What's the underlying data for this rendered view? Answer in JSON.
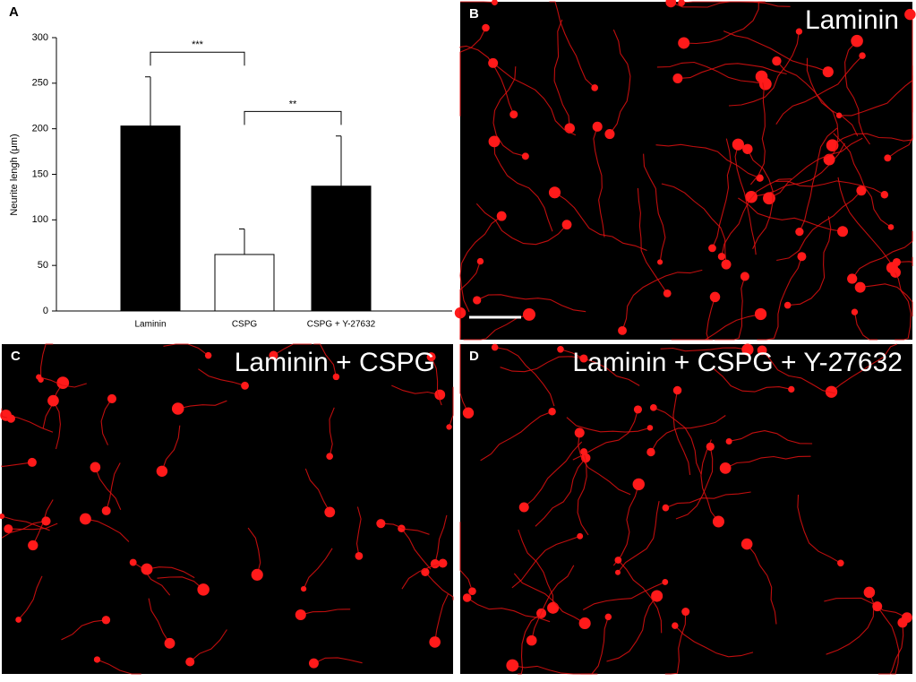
{
  "chart_data": {
    "type": "bar",
    "panel_letter": "A",
    "y_label": "Neurite lengh (μm)",
    "categories": [
      "Laminin",
      "CSPG",
      "CSPG + Y-27632"
    ],
    "values": [
      203,
      62,
      137
    ],
    "errors": [
      54,
      28,
      55
    ],
    "colors": [
      "#000000",
      "#ffffff",
      "#000000"
    ],
    "ylim": [
      0,
      300
    ],
    "yticks": [
      0,
      50,
      100,
      150,
      200,
      250,
      300
    ],
    "annotations": [
      {
        "text": "***",
        "from": 0,
        "to": 1
      },
      {
        "text": "**",
        "from": 1,
        "to": 2
      }
    ]
  },
  "panels": [
    {
      "letter": "B",
      "label": "Laminin"
    },
    {
      "letter": "C",
      "label": "Laminin + CSPG"
    },
    {
      "letter": "D",
      "label": "Laminin + CSPG + Y-27632"
    }
  ]
}
